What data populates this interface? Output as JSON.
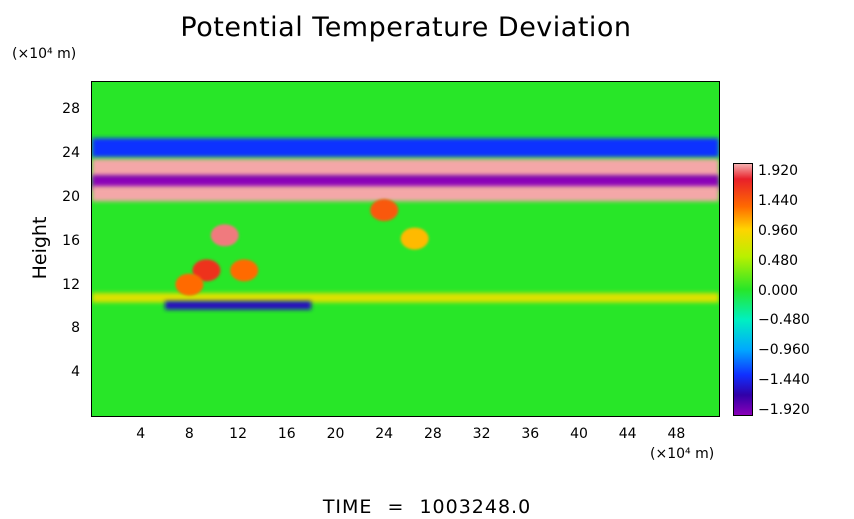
{
  "chart_data": {
    "type": "heatmap",
    "title": "Potential Temperature Deviation",
    "ylabel": "Height",
    "xlabel": "",
    "x_unit_label": "(×10⁴ m)",
    "y_unit_label": "(×10⁴ m)",
    "x_ticks": [
      4,
      8,
      12,
      16,
      20,
      24,
      28,
      32,
      36,
      40,
      44,
      48
    ],
    "y_ticks": [
      4,
      8,
      12,
      16,
      20,
      24,
      28
    ],
    "xlim": [
      0,
      51.5
    ],
    "ylim": [
      0,
      30.5
    ],
    "colorbar": {
      "labels": [
        "1.920",
        "1.440",
        "0.960",
        "0.480",
        "0.000",
        "−0.480",
        "−0.960",
        "−1.440",
        "−1.920"
      ],
      "min": -1.92,
      "max": 1.92
    },
    "features": [
      {
        "kind": "band",
        "y": 24.5,
        "x_range": [
          0,
          51.5
        ],
        "value": -1.2
      },
      {
        "kind": "band",
        "y": 22.6,
        "x_range": [
          0,
          51.5
        ],
        "value": 1.9
      },
      {
        "kind": "band",
        "y": 21.3,
        "x_range": [
          0,
          51.5
        ],
        "value": -1.92
      },
      {
        "kind": "band",
        "y": 20.3,
        "x_range": [
          0,
          51.5
        ],
        "value": 1.9
      },
      {
        "kind": "band",
        "y": 10.8,
        "x_range": [
          0,
          51.5
        ],
        "value": 0.6
      },
      {
        "kind": "band",
        "y": 10.1,
        "x_range": [
          6,
          18
        ],
        "value": -1.5
      },
      {
        "kind": "blob",
        "x": 10.9,
        "y": 16.5,
        "value": 1.8
      },
      {
        "kind": "blob",
        "x": 9.4,
        "y": 13.3,
        "value": 1.5
      },
      {
        "kind": "blob",
        "x": 8.0,
        "y": 12.0,
        "value": 1.2
      },
      {
        "kind": "blob",
        "x": 12.5,
        "y": 13.3,
        "value": 1.2
      },
      {
        "kind": "blob",
        "x": 24.0,
        "y": 18.8,
        "value": 1.3
      },
      {
        "kind": "blob",
        "x": 26.5,
        "y": 16.2,
        "value": 0.9
      }
    ]
  },
  "time_label": "TIME",
  "time_equals": "=",
  "time_value": "1003248.0"
}
